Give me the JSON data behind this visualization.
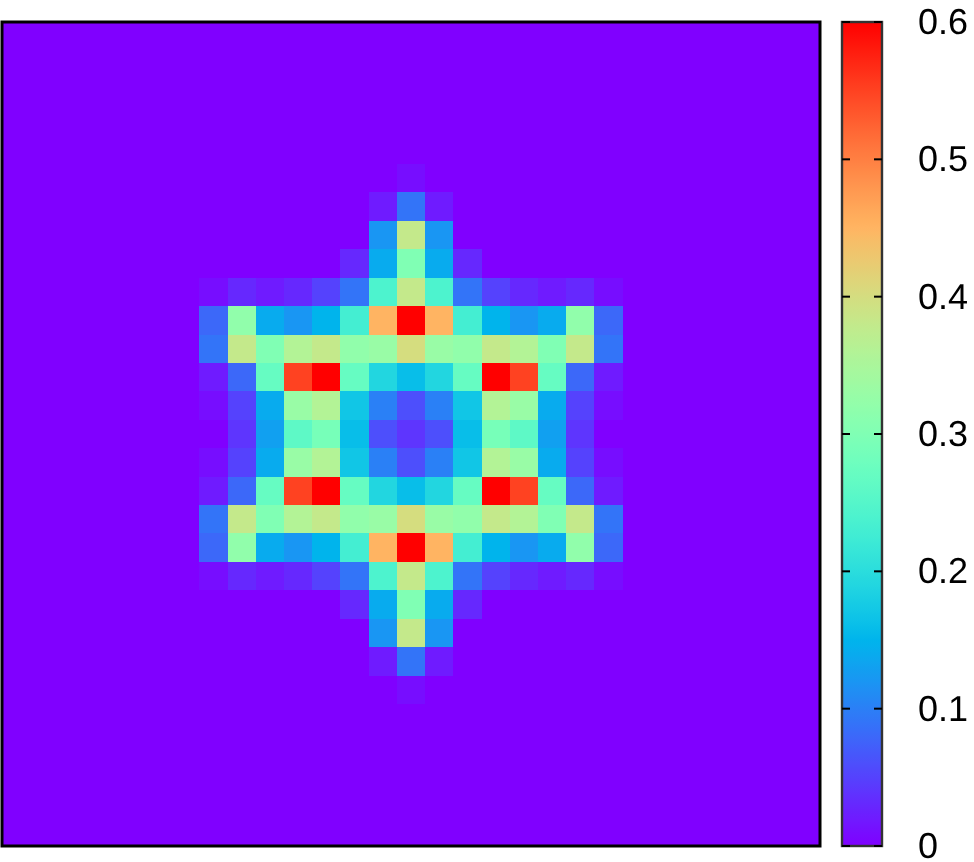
{
  "chart_data": {
    "type": "heatmap",
    "categories": [
      null,
      null,
      null,
      null,
      null,
      null,
      null,
      null,
      null,
      null,
      null,
      null,
      null,
      null,
      null,
      null,
      null,
      null,
      null,
      null,
      null,
      null,
      null,
      null,
      null,
      null,
      null,
      null,
      null
    ],
    "y_categories": [
      null,
      null,
      null,
      null,
      null,
      null,
      null,
      null,
      null,
      null,
      null,
      null,
      null,
      null,
      null,
      null,
      null,
      null,
      null,
      null,
      null,
      null,
      null,
      null,
      null,
      null,
      null,
      null,
      null
    ],
    "cells": [
      [
        0,
        0,
        0,
        0,
        0,
        0,
        0,
        0,
        0,
        0,
        0,
        0,
        0,
        0,
        0,
        0,
        0,
        0,
        0,
        0,
        0,
        0,
        0,
        0,
        0,
        0,
        0,
        0,
        0
      ],
      [
        0,
        0,
        0,
        0,
        0,
        0,
        0,
        0,
        0,
        0,
        0,
        0,
        0,
        0,
        0,
        0,
        0,
        0,
        0,
        0,
        0,
        0,
        0,
        0,
        0,
        0,
        0,
        0,
        0
      ],
      [
        0,
        0,
        0,
        0,
        0,
        0,
        0,
        0,
        0,
        0,
        0,
        0,
        0,
        0,
        0,
        0,
        0,
        0,
        0,
        0,
        0,
        0,
        0,
        0,
        0,
        0,
        0,
        0,
        0
      ],
      [
        0,
        0,
        0,
        0,
        0,
        0,
        0,
        0,
        0,
        0,
        0,
        0,
        0,
        0,
        0,
        0,
        0,
        0,
        0,
        0,
        0,
        0,
        0,
        0,
        0,
        0,
        0,
        0,
        0
      ],
      [
        0,
        0,
        0,
        0,
        0,
        0,
        0,
        0,
        0,
        0,
        0,
        0,
        0,
        0,
        0,
        0,
        0,
        0,
        0,
        0,
        0,
        0,
        0,
        0,
        0,
        0,
        0,
        0,
        0
      ],
      [
        0,
        0,
        0,
        0,
        0,
        0,
        0,
        0,
        0,
        0,
        0,
        0,
        0,
        0,
        0.01,
        0,
        0,
        0,
        0,
        0,
        0,
        0,
        0,
        0,
        0,
        0,
        0,
        0,
        0
      ],
      [
        0,
        0,
        0,
        0,
        0,
        0,
        0,
        0,
        0,
        0,
        0,
        0,
        0,
        0.02,
        0.09,
        0.02,
        0,
        0,
        0,
        0,
        0,
        0,
        0,
        0,
        0,
        0,
        0,
        0,
        0
      ],
      [
        0,
        0,
        0,
        0,
        0,
        0,
        0,
        0,
        0,
        0,
        0,
        0,
        0,
        0.12,
        0.38,
        0.12,
        0,
        0,
        0,
        0,
        0,
        0,
        0,
        0,
        0,
        0,
        0,
        0,
        0
      ],
      [
        0,
        0,
        0,
        0,
        0,
        0,
        0,
        0,
        0,
        0,
        0,
        0,
        0.03,
        0.14,
        0.3,
        0.14,
        0.03,
        0,
        0,
        0,
        0,
        0,
        0,
        0,
        0,
        0,
        0,
        0,
        0
      ],
      [
        0,
        0,
        0,
        0,
        0,
        0,
        0,
        0.01,
        0.03,
        0.02,
        0.03,
        0.05,
        0.09,
        0.24,
        0.38,
        0.24,
        0.09,
        0.05,
        0.03,
        0.02,
        0.03,
        0.01,
        0,
        0,
        0,
        0,
        0,
        0,
        0
      ],
      [
        0,
        0,
        0,
        0,
        0,
        0,
        0,
        0.08,
        0.32,
        0.14,
        0.12,
        0.15,
        0.23,
        0.45,
        0.6,
        0.45,
        0.23,
        0.15,
        0.12,
        0.14,
        0.32,
        0.08,
        0,
        0,
        0,
        0,
        0,
        0,
        0
      ],
      [
        0,
        0,
        0,
        0,
        0,
        0,
        0,
        0.09,
        0.38,
        0.3,
        0.36,
        0.38,
        0.32,
        0.33,
        0.4,
        0.33,
        0.32,
        0.38,
        0.36,
        0.3,
        0.38,
        0.09,
        0,
        0,
        0,
        0,
        0,
        0,
        0
      ],
      [
        0,
        0,
        0,
        0,
        0,
        0,
        0,
        0.02,
        0.08,
        0.27,
        0.55,
        0.6,
        0.27,
        0.19,
        0.16,
        0.19,
        0.27,
        0.6,
        0.55,
        0.27,
        0.08,
        0.02,
        0,
        0,
        0,
        0,
        0,
        0,
        0
      ],
      [
        0,
        0,
        0,
        0,
        0,
        0,
        0,
        0.01,
        0.05,
        0.14,
        0.33,
        0.36,
        0.17,
        0.1,
        0.06,
        0.1,
        0.17,
        0.36,
        0.33,
        0.14,
        0.05,
        0.01,
        0,
        0,
        0,
        0,
        0,
        0,
        0
      ],
      [
        0,
        0,
        0,
        0,
        0,
        0,
        0,
        0,
        0.04,
        0.13,
        0.26,
        0.29,
        0.16,
        0.06,
        0.04,
        0.06,
        0.16,
        0.29,
        0.26,
        0.13,
        0.04,
        0,
        0,
        0,
        0,
        0,
        0,
        0,
        0
      ],
      [
        0,
        0,
        0,
        0,
        0,
        0,
        0,
        0.01,
        0.05,
        0.14,
        0.33,
        0.36,
        0.17,
        0.1,
        0.06,
        0.1,
        0.17,
        0.36,
        0.33,
        0.14,
        0.05,
        0.01,
        0,
        0,
        0,
        0,
        0,
        0,
        0
      ],
      [
        0,
        0,
        0,
        0,
        0,
        0,
        0,
        0.02,
        0.08,
        0.27,
        0.55,
        0.6,
        0.27,
        0.19,
        0.16,
        0.19,
        0.27,
        0.6,
        0.55,
        0.27,
        0.08,
        0.02,
        0,
        0,
        0,
        0,
        0,
        0,
        0
      ],
      [
        0,
        0,
        0,
        0,
        0,
        0,
        0,
        0.09,
        0.38,
        0.3,
        0.36,
        0.38,
        0.32,
        0.33,
        0.4,
        0.33,
        0.32,
        0.38,
        0.36,
        0.3,
        0.38,
        0.09,
        0,
        0,
        0,
        0,
        0,
        0,
        0
      ],
      [
        0,
        0,
        0,
        0,
        0,
        0,
        0,
        0.08,
        0.32,
        0.14,
        0.12,
        0.15,
        0.23,
        0.45,
        0.6,
        0.45,
        0.23,
        0.15,
        0.12,
        0.14,
        0.32,
        0.08,
        0,
        0,
        0,
        0,
        0,
        0,
        0
      ],
      [
        0,
        0,
        0,
        0,
        0,
        0,
        0,
        0.01,
        0.03,
        0.02,
        0.03,
        0.05,
        0.09,
        0.24,
        0.38,
        0.24,
        0.09,
        0.05,
        0.03,
        0.02,
        0.03,
        0.01,
        0,
        0,
        0,
        0,
        0,
        0,
        0
      ],
      [
        0,
        0,
        0,
        0,
        0,
        0,
        0,
        0,
        0,
        0,
        0,
        0,
        0.03,
        0.14,
        0.3,
        0.14,
        0.03,
        0,
        0,
        0,
        0,
        0,
        0,
        0,
        0,
        0,
        0,
        0,
        0
      ],
      [
        0,
        0,
        0,
        0,
        0,
        0,
        0,
        0,
        0,
        0,
        0,
        0,
        0,
        0.12,
        0.38,
        0.12,
        0,
        0,
        0,
        0,
        0,
        0,
        0,
        0,
        0,
        0,
        0,
        0,
        0
      ],
      [
        0,
        0,
        0,
        0,
        0,
        0,
        0,
        0,
        0,
        0,
        0,
        0,
        0,
        0.02,
        0.09,
        0.02,
        0,
        0,
        0,
        0,
        0,
        0,
        0,
        0,
        0,
        0,
        0,
        0,
        0
      ],
      [
        0,
        0,
        0,
        0,
        0,
        0,
        0,
        0,
        0,
        0,
        0,
        0,
        0,
        0,
        0.01,
        0,
        0,
        0,
        0,
        0,
        0,
        0,
        0,
        0,
        0,
        0,
        0,
        0,
        0
      ],
      [
        0,
        0,
        0,
        0,
        0,
        0,
        0,
        0,
        0,
        0,
        0,
        0,
        0,
        0,
        0,
        0,
        0,
        0,
        0,
        0,
        0,
        0,
        0,
        0,
        0,
        0,
        0,
        0,
        0
      ],
      [
        0,
        0,
        0,
        0,
        0,
        0,
        0,
        0,
        0,
        0,
        0,
        0,
        0,
        0,
        0,
        0,
        0,
        0,
        0,
        0,
        0,
        0,
        0,
        0,
        0,
        0,
        0,
        0,
        0
      ],
      [
        0,
        0,
        0,
        0,
        0,
        0,
        0,
        0,
        0,
        0,
        0,
        0,
        0,
        0,
        0,
        0,
        0,
        0,
        0,
        0,
        0,
        0,
        0,
        0,
        0,
        0,
        0,
        0,
        0
      ],
      [
        0,
        0,
        0,
        0,
        0,
        0,
        0,
        0,
        0,
        0,
        0,
        0,
        0,
        0,
        0,
        0,
        0,
        0,
        0,
        0,
        0,
        0,
        0,
        0,
        0,
        0,
        0,
        0,
        0
      ],
      [
        0,
        0,
        0,
        0,
        0,
        0,
        0,
        0,
        0,
        0,
        0,
        0,
        0,
        0,
        0,
        0,
        0,
        0,
        0,
        0,
        0,
        0,
        0,
        0,
        0,
        0,
        0,
        0,
        0
      ]
    ],
    "clim": [
      0,
      0.6
    ],
    "cticks": [
      0,
      0.1,
      0.2,
      0.3,
      0.4,
      0.5,
      0.6
    ]
  }
}
